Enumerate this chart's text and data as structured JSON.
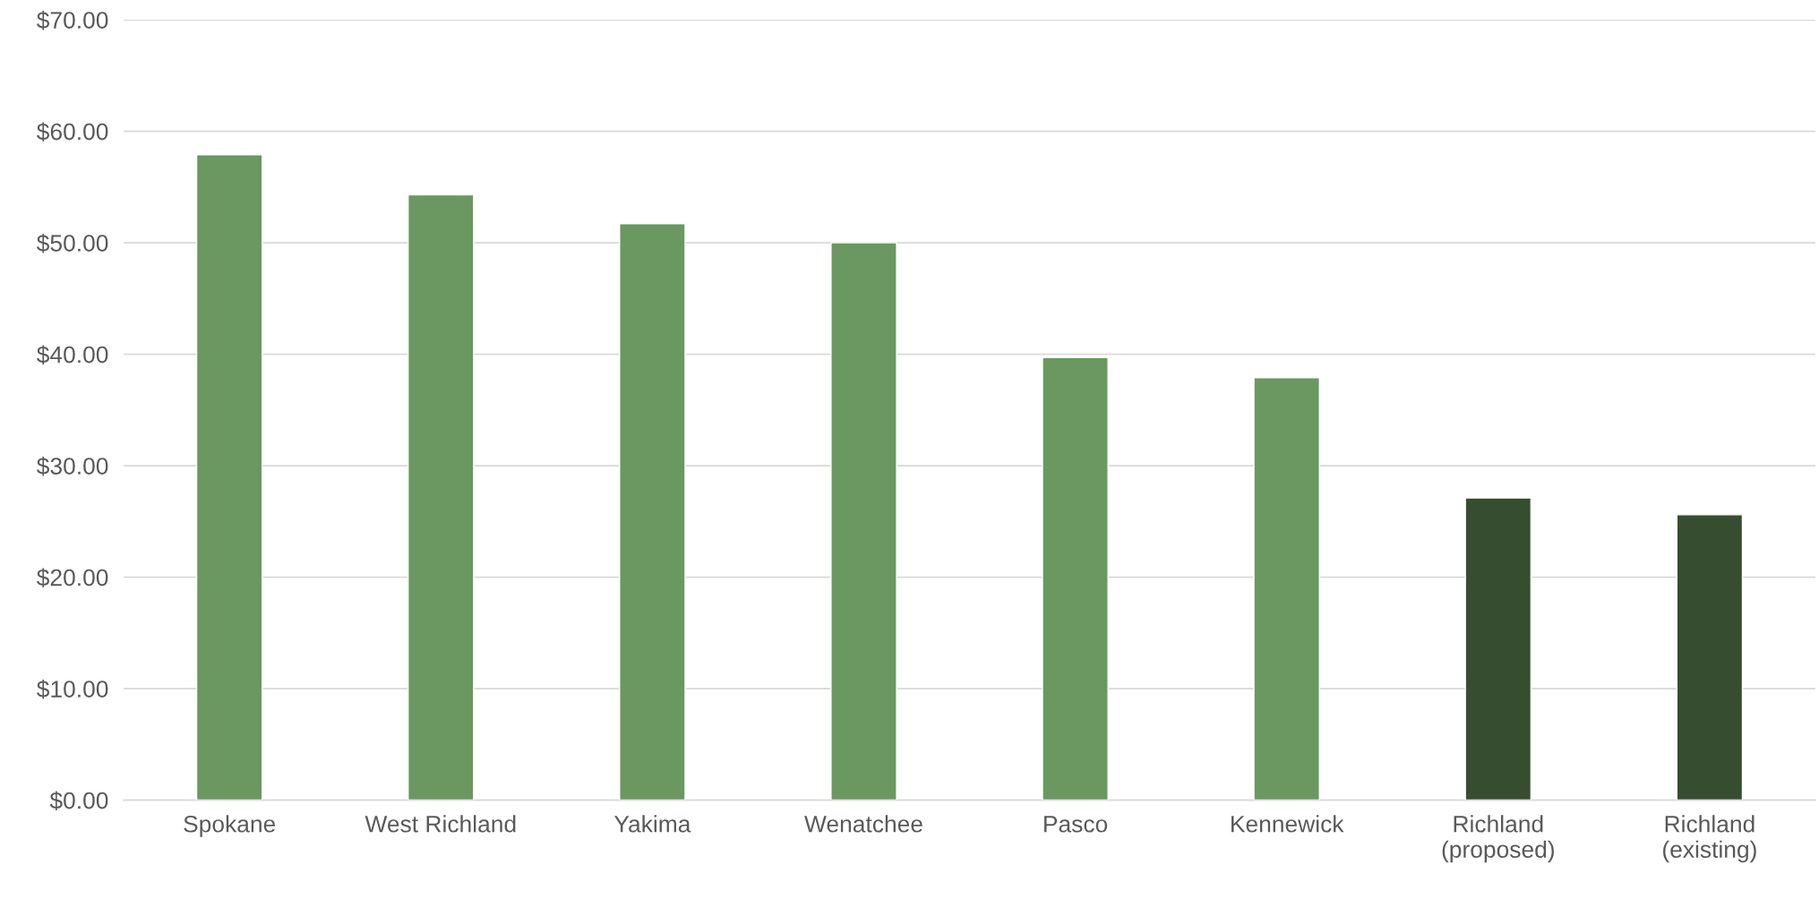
{
  "chart_data": {
    "type": "bar",
    "categories": [
      "Spokane",
      "West Richland",
      "Yakima",
      "Wenatchee",
      "Pasco",
      "Kennewick",
      "Richland\n(proposed)",
      "Richland\n(existing)"
    ],
    "values": [
      57.9,
      54.3,
      51.7,
      50.0,
      39.7,
      37.9,
      27.1,
      25.6
    ],
    "colors": [
      "#6a9860",
      "#6a9860",
      "#6a9860",
      "#6a9860",
      "#6a9860",
      "#6a9860",
      "#374d30",
      "#374d30"
    ],
    "ylim": [
      0,
      70
    ],
    "yticks": [
      {
        "value": 0,
        "label": "$0.00"
      },
      {
        "value": 10,
        "label": "$10.00"
      },
      {
        "value": 20,
        "label": "$20.00"
      },
      {
        "value": 30,
        "label": "$30.00"
      },
      {
        "value": 40,
        "label": "$40.00"
      },
      {
        "value": 50,
        "label": "$50.00"
      },
      {
        "value": 60,
        "label": "$60.00"
      },
      {
        "value": 70,
        "label": "$70.00"
      }
    ],
    "grid": "y"
  }
}
